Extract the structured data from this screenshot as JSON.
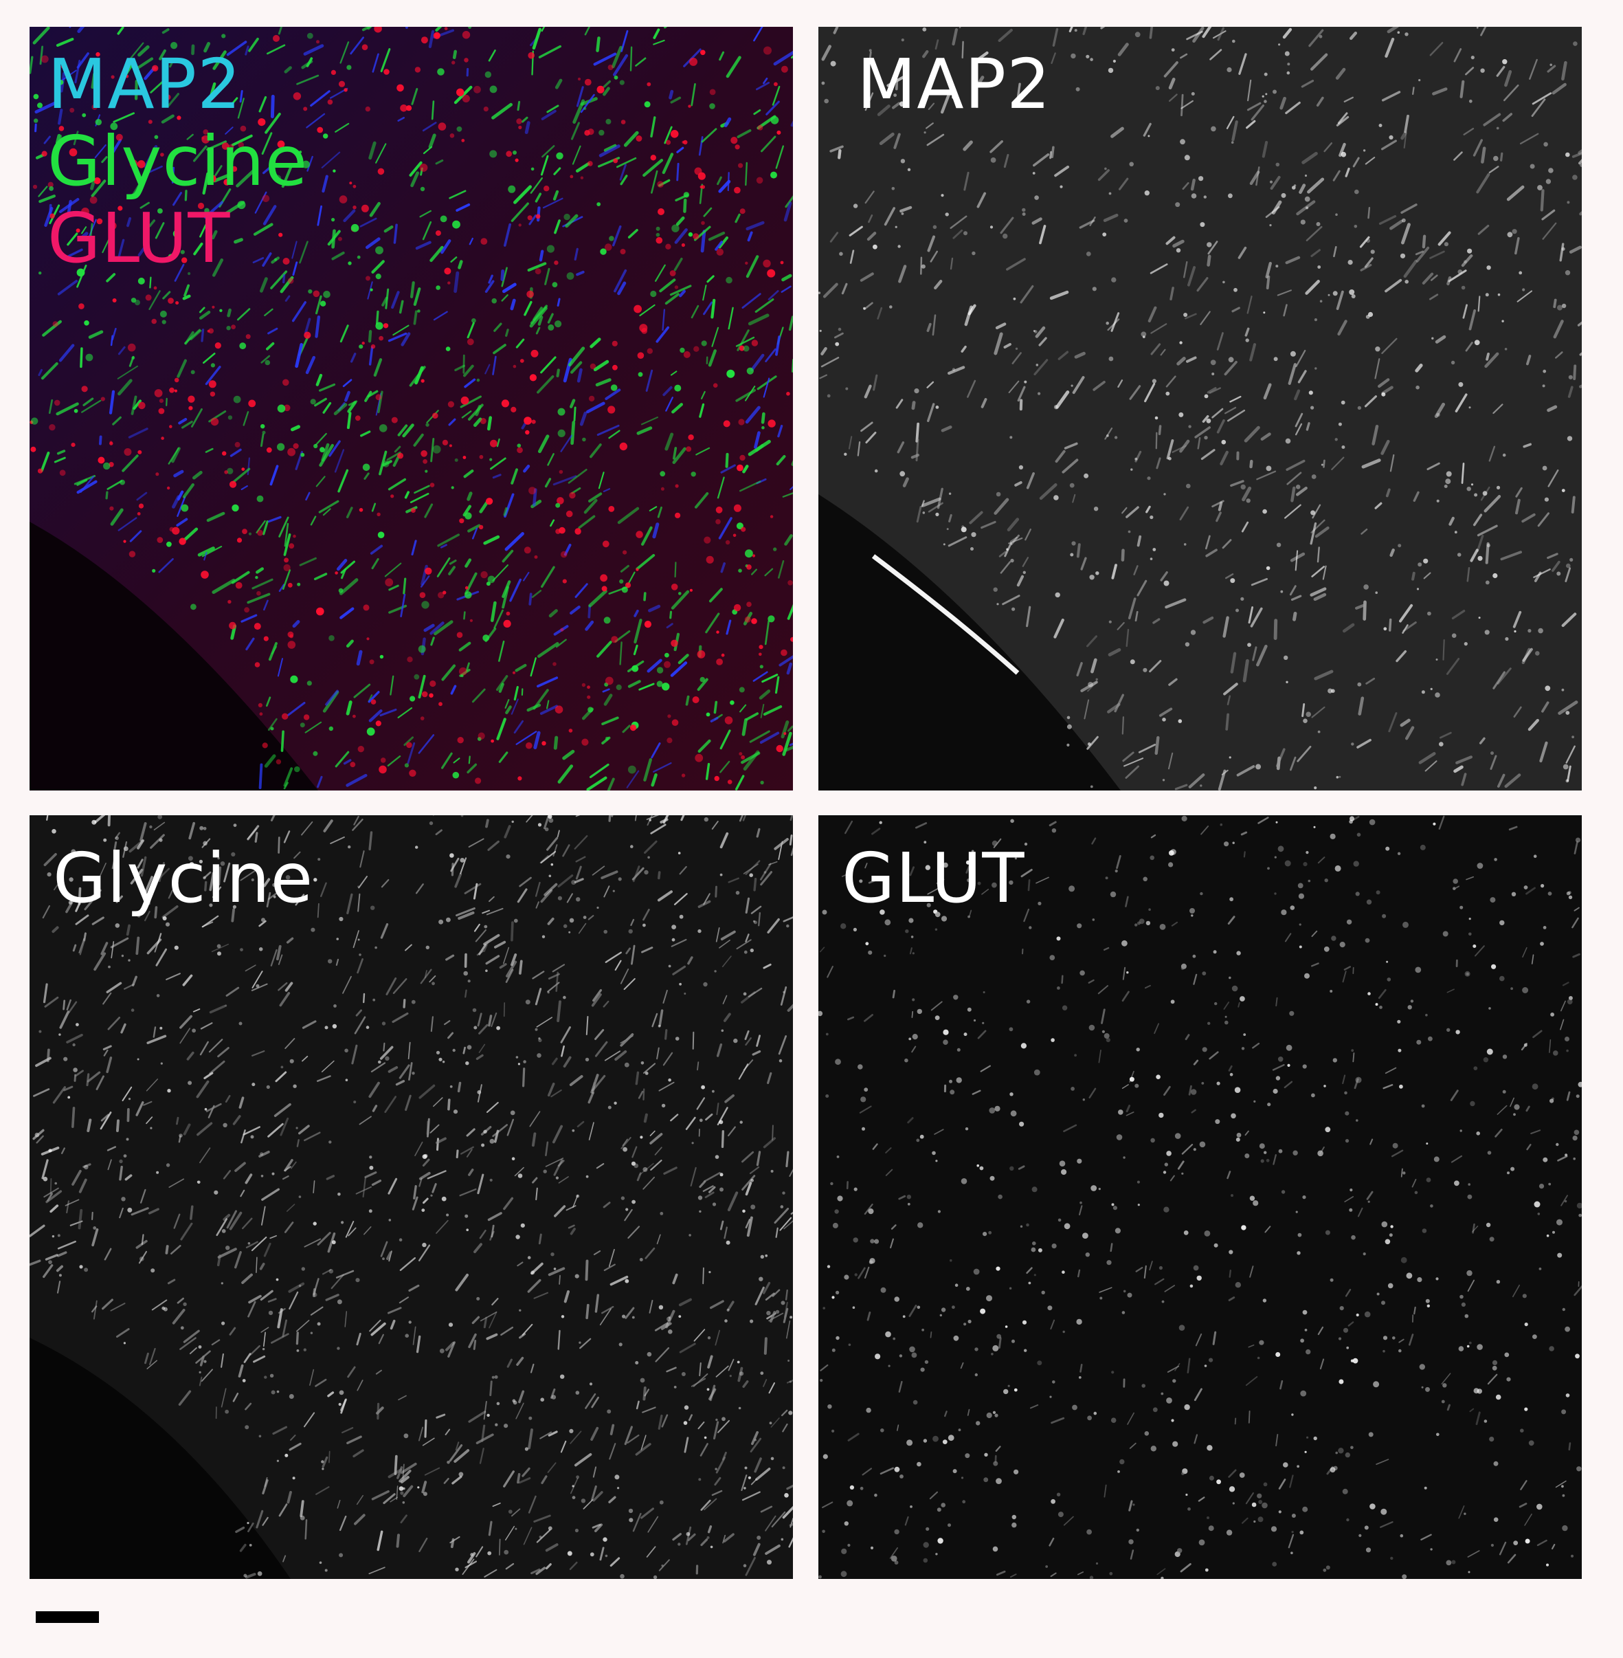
{
  "panels": {
    "merge": {
      "labels": [
        {
          "text": "MAP2",
          "color": "#2ac8e0"
        },
        {
          "text": "Glycine",
          "color": "#22e040"
        },
        {
          "text": "GLUT",
          "color": "#f01868"
        }
      ]
    },
    "map2": {
      "label": "MAP2"
    },
    "glycine": {
      "label": "Glycine"
    },
    "glut": {
      "label": "GLUT"
    }
  },
  "colors": {
    "background": "#fcf6f6",
    "panel_background": "#050505",
    "channel_map2": "#2a3cff",
    "channel_glycine": "#22e040",
    "channel_glut": "#ff1030"
  },
  "scale_bar": {
    "visible": true
  }
}
